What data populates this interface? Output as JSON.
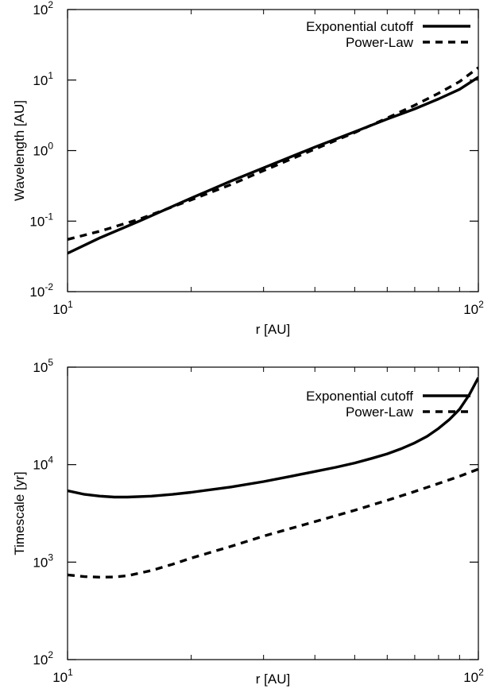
{
  "chart_data": [
    {
      "type": "line",
      "xscale": "log",
      "yscale": "log",
      "xlim": [
        10,
        100
      ],
      "ylim": [
        0.01,
        100
      ],
      "xlabel": "r [AU]",
      "ylabel": "Wavelength [AU]",
      "grid": false,
      "legend": "top-right",
      "xticks": [
        {
          "base": "10",
          "exp": "1",
          "value": 10
        },
        {
          "base": "10",
          "exp": "2",
          "value": 100
        }
      ],
      "yticks": [
        {
          "base": "10",
          "exp": "-2",
          "value": 0.01
        },
        {
          "base": "10",
          "exp": "-1",
          "value": 0.1
        },
        {
          "base": "10",
          "exp": "0",
          "value": 1
        },
        {
          "base": "10",
          "exp": "1",
          "value": 10
        },
        {
          "base": "10",
          "exp": "2",
          "value": 100
        }
      ],
      "series": [
        {
          "name": "Exponential cutoff",
          "style": "solid",
          "x": [
            10,
            12,
            15,
            20,
            25,
            30,
            40,
            50,
            60,
            70,
            80,
            90,
            100
          ],
          "y": [
            0.035,
            0.058,
            0.101,
            0.212,
            0.37,
            0.57,
            1.12,
            1.85,
            2.8,
            3.9,
            5.4,
            7.4,
            11
          ]
        },
        {
          "name": "Power-Law",
          "style": "dashed",
          "x": [
            10,
            12,
            15,
            20,
            25,
            30,
            40,
            50,
            60,
            70,
            80,
            90,
            100
          ],
          "y": [
            0.055,
            0.072,
            0.107,
            0.2,
            0.33,
            0.52,
            1.05,
            1.8,
            2.9,
            4.4,
            6.5,
            9.5,
            15
          ]
        }
      ]
    },
    {
      "type": "line",
      "xscale": "log",
      "yscale": "log",
      "xlim": [
        10,
        100
      ],
      "ylim": [
        100,
        100000
      ],
      "xlabel": "r [AU]",
      "ylabel": "Timescale [yr]",
      "grid": false,
      "legend": "top-right",
      "xticks": [
        {
          "base": "10",
          "exp": "1",
          "value": 10
        },
        {
          "base": "10",
          "exp": "2",
          "value": 100
        }
      ],
      "yticks": [
        {
          "base": "10",
          "exp": "2",
          "value": 100
        },
        {
          "base": "10",
          "exp": "3",
          "value": 1000
        },
        {
          "base": "10",
          "exp": "4",
          "value": 10000
        },
        {
          "base": "10",
          "exp": "5",
          "value": 100000
        }
      ],
      "series": [
        {
          "name": "Exponential cutoff",
          "style": "solid",
          "x": [
            10,
            11,
            12,
            13,
            14,
            16,
            18,
            20,
            25,
            30,
            35,
            40,
            45,
            50,
            55,
            60,
            65,
            70,
            75,
            80,
            85,
            90,
            95,
            100
          ],
          "y": [
            5400,
            4950,
            4750,
            4650,
            4650,
            4750,
            4950,
            5200,
            5900,
            6700,
            7600,
            8500,
            9400,
            10400,
            11600,
            12900,
            14600,
            16700,
            19500,
            23500,
            29000,
            37000,
            52000,
            78000
          ]
        },
        {
          "name": "Power-Law",
          "style": "dashed",
          "x": [
            10,
            11,
            12,
            13,
            14,
            16,
            18,
            20,
            25,
            30,
            40,
            50,
            60,
            70,
            80,
            90,
            100
          ],
          "y": [
            740,
            710,
            700,
            705,
            725,
            820,
            950,
            1100,
            1450,
            1850,
            2600,
            3400,
            4300,
            5300,
            6400,
            7600,
            9000
          ]
        }
      ]
    }
  ]
}
